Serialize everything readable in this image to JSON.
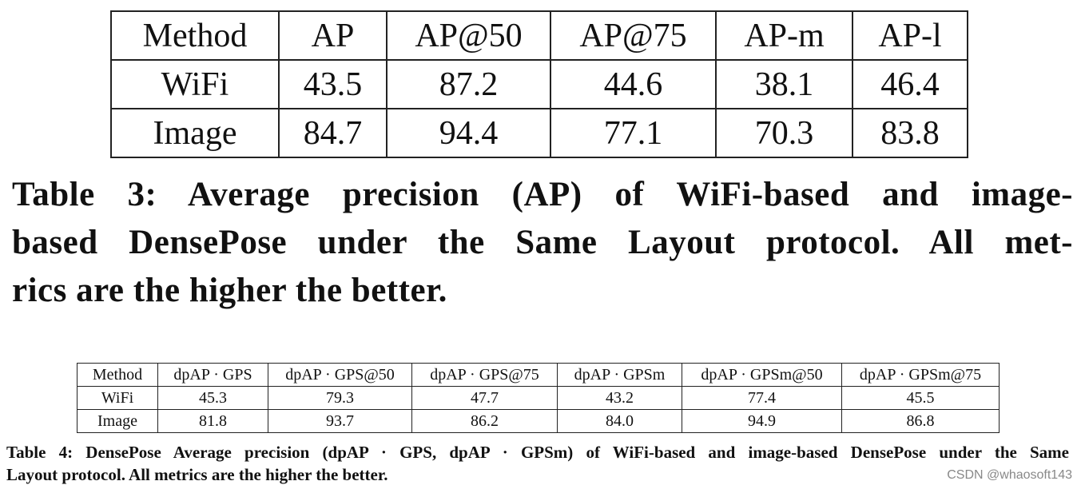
{
  "table3": {
    "header": [
      "Method",
      "AP",
      "AP@50",
      "AP@75",
      "AP-m",
      "AP-l"
    ],
    "rows": [
      [
        "WiFi",
        "43.5",
        "87.2",
        "44.6",
        "38.1",
        "46.4"
      ],
      [
        "Image",
        "84.7",
        "94.4",
        "77.1",
        "70.3",
        "83.8"
      ]
    ],
    "caption_lines": [
      "Table 3: Average precision (AP) of WiFi-based and image-",
      "based DensePose under the Same Layout protocol. All met-",
      "rics are the higher the better."
    ]
  },
  "table4": {
    "header": [
      "Method",
      "dpAP · GPS",
      "dpAP · GPS@50",
      "dpAP · GPS@75",
      "dpAP · GPSm",
      "dpAP · GPSm@50",
      "dpAP · GPSm@75"
    ],
    "rows": [
      [
        "WiFi",
        "45.3",
        "79.3",
        "47.7",
        "43.2",
        "77.4",
        "45.5"
      ],
      [
        "Image",
        "81.8",
        "93.7",
        "86.2",
        "84.0",
        "94.9",
        "86.8"
      ]
    ],
    "caption_lines": [
      "Table 4: DensePose Average precision (dpAP · GPS, dpAP · GPSm) of WiFi-based and image-based DensePose under the Same",
      "Layout protocol. All metrics are the higher the better."
    ]
  },
  "watermark": "CSDN @whaosoft143"
}
